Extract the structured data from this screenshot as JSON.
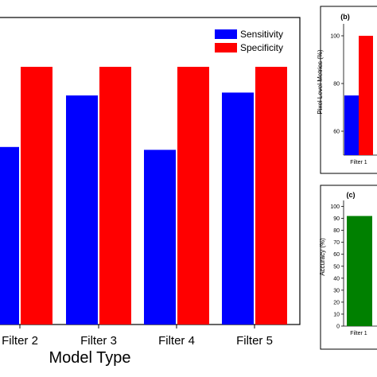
{
  "chart_data": [
    {
      "panel": "a",
      "type": "bar",
      "xlabel": "Model Type",
      "ylabel": "",
      "categories": [
        "Filter 2",
        "Filter 3",
        "Filter 4",
        "Filter 5"
      ],
      "series": [
        {
          "name": "Sensitivity",
          "color": "#0000ff",
          "values": [
            62,
            80,
            61,
            81
          ]
        },
        {
          "name": "Specificity",
          "color": "#ff0000",
          "values": [
            90,
            90,
            90,
            90
          ]
        }
      ],
      "legend": "top-right",
      "grid": false
    },
    {
      "panel": "b",
      "panel_label": "(b)",
      "type": "bar",
      "ylabel": "Pixel Level Metrics (%)",
      "categories": [
        "Filter 1"
      ],
      "yticks": [
        60,
        80,
        100
      ],
      "ylim": [
        50,
        105
      ],
      "series": [
        {
          "name": "Sensitivity",
          "color": "#0000ff",
          "values": [
            75
          ]
        },
        {
          "name": "Specificity",
          "color": "#ff0000",
          "values": [
            100
          ]
        }
      ]
    },
    {
      "panel": "c",
      "panel_label": "(c)",
      "type": "bar",
      "ylabel": "Accuracy (%)",
      "categories": [
        "Filter 1"
      ],
      "yticks": [
        0,
        10,
        20,
        30,
        40,
        50,
        60,
        70,
        80,
        90,
        100
      ],
      "ylim": [
        0,
        105
      ],
      "series": [
        {
          "name": "Accuracy",
          "color": "#008000",
          "values": [
            92
          ]
        }
      ]
    }
  ]
}
